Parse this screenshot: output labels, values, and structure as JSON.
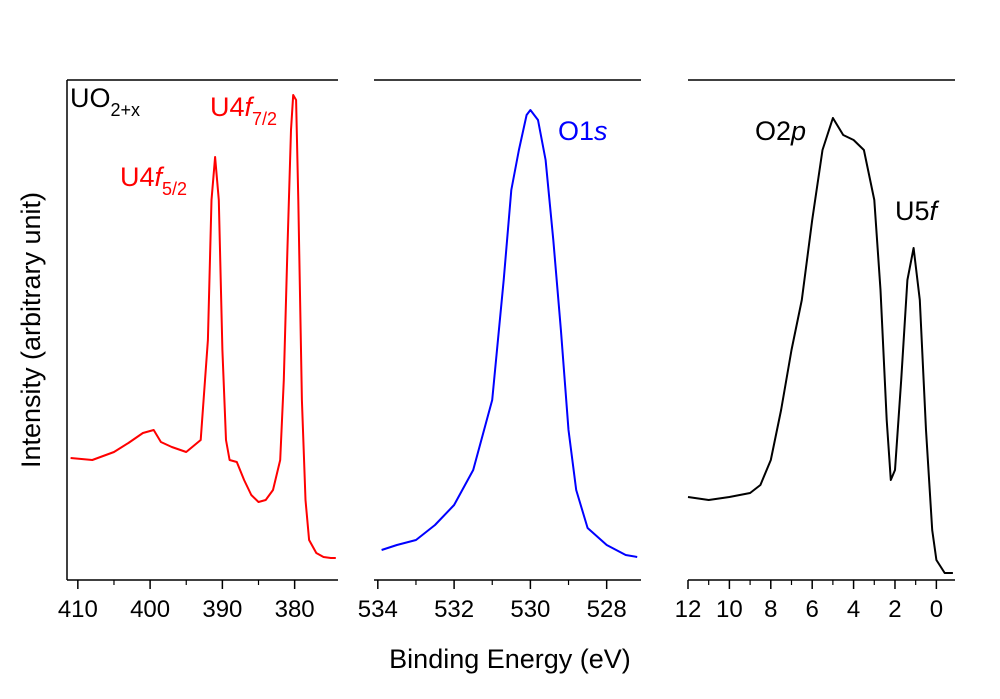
{
  "xlabel": "Binding Energy (eV)",
  "ylabel": "Intensity (arbitrary unit)",
  "chart_data": [
    {
      "type": "line",
      "color": "#ff0000",
      "frame": [
        "top",
        "bottom",
        "left"
      ],
      "xlim": [
        411.5,
        374
      ],
      "ylim": [
        0,
        100
      ],
      "xticks": [
        410,
        400,
        390,
        380
      ],
      "xminorticks": [
        405,
        395,
        385
      ],
      "x": [
        411,
        408,
        405,
        403,
        401,
        399.5,
        398.5,
        397,
        395,
        393,
        392,
        391.5,
        391,
        390.5,
        390,
        389.5,
        389,
        388,
        387,
        386,
        385,
        384,
        383,
        382,
        381.5,
        381,
        380.5,
        380.2,
        379.8,
        379.5,
        379,
        378.5,
        378,
        377,
        376,
        375,
        374.3
      ],
      "values": [
        24.4,
        24,
        25.6,
        27.4,
        29.4,
        30,
        27.6,
        26.6,
        25.6,
        28,
        48,
        76,
        84.6,
        76,
        46,
        28,
        24,
        23.6,
        20,
        17,
        15.6,
        16,
        18,
        24,
        40,
        66,
        90,
        97,
        96,
        76,
        36,
        16,
        8,
        5.4,
        4.6,
        4.4,
        4.4
      ],
      "annotations": [
        {
          "color": "#000000",
          "parts": [
            {
              "text": "UO"
            },
            {
              "text": "2+x",
              "style": "sub"
            }
          ]
        },
        {
          "color": "#ff0000",
          "parts": [
            {
              "text": "U4"
            },
            {
              "text": "f",
              "style": "italic"
            },
            {
              "text": "5/2",
              "style": "sub"
            }
          ]
        },
        {
          "color": "#ff0000",
          "parts": [
            {
              "text": "U4"
            },
            {
              "text": "f",
              "style": "italic"
            },
            {
              "text": "7/2",
              "style": "sub"
            }
          ]
        }
      ]
    },
    {
      "type": "line",
      "color": "#0000ff",
      "frame": [
        "top",
        "bottom"
      ],
      "xlim": [
        534.1,
        527.1
      ],
      "ylim": [
        0,
        100
      ],
      "xticks": [
        534,
        532,
        530,
        528
      ],
      "xminorticks": [
        533,
        531,
        529
      ],
      "x": [
        533.9,
        533.5,
        533,
        532.5,
        532,
        531.5,
        531,
        530.7,
        530.5,
        530.3,
        530.1,
        530,
        529.8,
        529.6,
        529.4,
        529.2,
        529,
        528.8,
        528.5,
        528,
        527.5,
        527.2
      ],
      "values": [
        6,
        7,
        8,
        11,
        15,
        22,
        36,
        60,
        78,
        86,
        93,
        94,
        92,
        84,
        68,
        50,
        30,
        18,
        10.4,
        7,
        5,
        4.6
      ],
      "annotations": [
        {
          "color": "#0000ff",
          "parts": [
            {
              "text": "O1"
            },
            {
              "text": "s",
              "style": "italic"
            }
          ]
        }
      ]
    },
    {
      "type": "line",
      "color": "#000000",
      "frame": [
        "top",
        "bottom"
      ],
      "xlim": [
        12,
        -0.9
      ],
      "ylim": [
        0,
        100
      ],
      "xticks": [
        12,
        10,
        8,
        6,
        4,
        2,
        0
      ],
      "xminorticks": [
        11,
        9,
        7,
        5,
        3,
        1
      ],
      "x": [
        12,
        11,
        10,
        9,
        8.5,
        8,
        7.5,
        7,
        6.5,
        6,
        5.5,
        5,
        4.5,
        4,
        3.5,
        3,
        2.7,
        2.4,
        2.2,
        2,
        1.7,
        1.4,
        1.1,
        0.8,
        0.5,
        0.2,
        0,
        -0.4,
        -0.8
      ],
      "values": [
        16.6,
        16,
        16.6,
        17.4,
        19,
        24,
        34,
        46,
        56,
        72,
        86,
        92.4,
        89,
        88,
        86,
        76,
        58,
        32,
        20,
        22,
        40,
        60,
        66.4,
        56,
        30,
        10,
        4,
        1.4,
        1.4
      ],
      "annotations": [
        {
          "color": "#000000",
          "parts": [
            {
              "text": "O2"
            },
            {
              "text": "p",
              "style": "italic"
            }
          ]
        },
        {
          "color": "#000000",
          "parts": [
            {
              "text": "U5"
            },
            {
              "text": "f",
              "style": "italic"
            }
          ]
        }
      ]
    }
  ]
}
